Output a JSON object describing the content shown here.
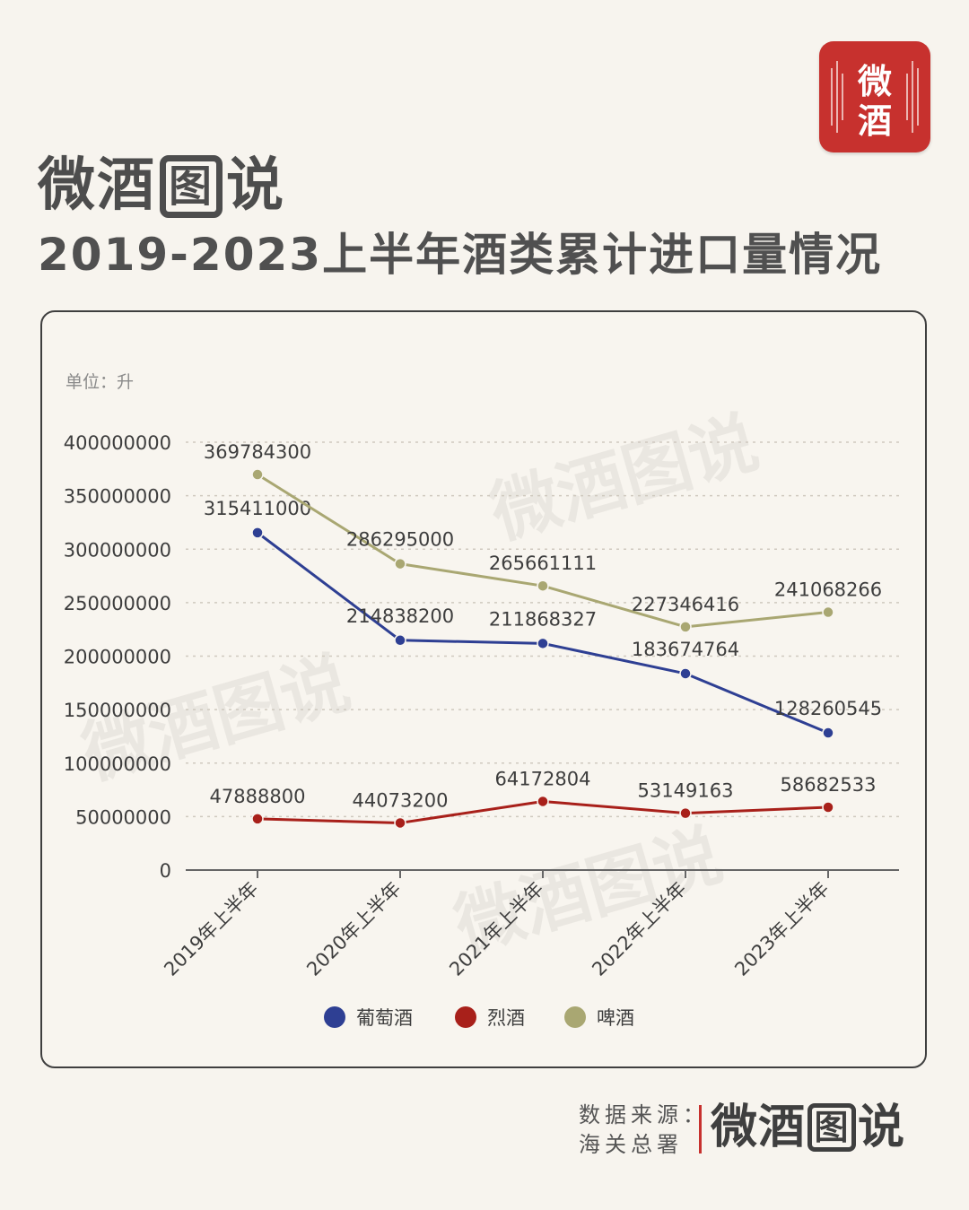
{
  "brand": {
    "badge_text": "微酒",
    "logo_parts": [
      "微酒",
      "图",
      "说"
    ]
  },
  "title": "2019-2023上半年酒类累计进口量情况",
  "unit_label": "单位：升",
  "source": {
    "line1": "数据来源：",
    "line2": "海关总署"
  },
  "watermark_text": "微酒图说",
  "colors": {
    "wine": "#2e3f93",
    "spirits": "#a8201a",
    "beer": "#a9a772",
    "brand_red": "#c7312e"
  },
  "chart_data": {
    "type": "line",
    "categories": [
      "2019年上半年",
      "2020年上半年",
      "2021年上半年",
      "2022年上半年",
      "2023年上半年"
    ],
    "series": [
      {
        "name": "葡萄酒",
        "values": [
          315411000,
          214838200,
          211868327,
          183674764,
          128260545
        ],
        "labels": [
          "315411000",
          "214838200",
          "211868327",
          "183674764",
          "128260545"
        ]
      },
      {
        "name": "烈酒",
        "values": [
          47888800,
          44073200,
          64172804,
          53149163,
          58682533
        ],
        "labels": [
          "47888800",
          "44073200",
          "64172804",
          "53149163",
          "58682533"
        ]
      },
      {
        "name": "啤酒",
        "values": [
          369784300,
          286295000,
          265661111,
          227346416,
          241068266
        ],
        "labels": [
          "369784300",
          "286295000",
          "265661111",
          "227346416",
          "241068266"
        ]
      }
    ],
    "ylim": [
      0,
      400000000
    ],
    "yticks": [
      "0",
      "50000000",
      "100000000",
      "150000000",
      "200000000",
      "250000000",
      "300000000",
      "350000000",
      "400000000"
    ],
    "grid": true,
    "legend": "bottom"
  }
}
